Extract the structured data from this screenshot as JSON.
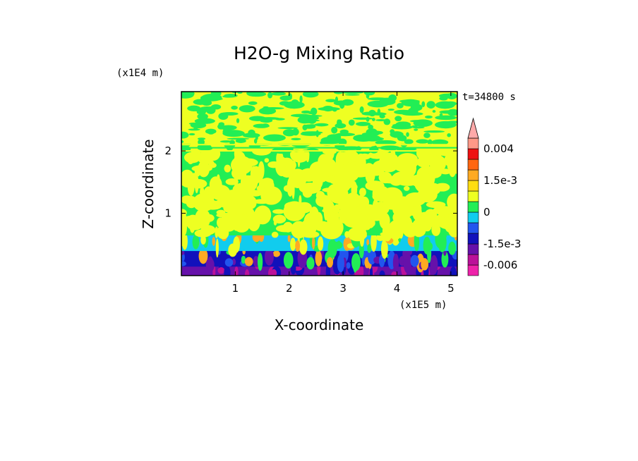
{
  "chart_data": {
    "type": "heatmap",
    "title": "H2O-g Mixing Ratio",
    "xlabel": "X-coordinate",
    "ylabel": "Z-coordinate",
    "x_scale_label": "(x1E5 m)",
    "y_scale_label": "(x1E4 m)",
    "time_label": "t=34800 s",
    "xlim": [
      0,
      5.12
    ],
    "ylim": [
      0,
      2.95
    ],
    "x_ticks": [
      {
        "value": 1,
        "label": "1"
      },
      {
        "value": 2,
        "label": "2"
      },
      {
        "value": 3,
        "label": "3"
      },
      {
        "value": 4,
        "label": "4"
      },
      {
        "value": 5,
        "label": "5"
      }
    ],
    "y_ticks": [
      {
        "value": 1,
        "label": "1"
      },
      {
        "value": 2,
        "label": "2"
      }
    ],
    "colorbar": {
      "levels": [
        -0.009,
        -0.006,
        -0.003,
        -0.0015,
        -0.001,
        -0.0005,
        0,
        0.0005,
        0.001,
        0.0015,
        0.002,
        0.003,
        0.004,
        0.005
      ],
      "colors": [
        "#ee22aa",
        "#bb1199",
        "#6611aa",
        "#1111bb",
        "#2255ee",
        "#11ccee",
        "#22ee55",
        "#eeff22",
        "#ffdd11",
        "#ffaa22",
        "#ff6611",
        "#ee1111",
        "#ff9988",
        "#ffaaaa"
      ],
      "tick_labels": [
        {
          "value": -0.006,
          "label": "-0.006"
        },
        {
          "value": -0.0015,
          "label": "-1.5e-3"
        },
        {
          "value": 0,
          "label": "0"
        },
        {
          "value": 0.0015,
          "label": "1.5e-3"
        },
        {
          "value": 0.004,
          "label": "0.004"
        }
      ],
      "extend": "max"
    },
    "field_bands": [
      {
        "z_min": 0.0,
        "z_max": 0.15,
        "dominant": "#6611aa",
        "mix": [
          "#1111bb",
          "#bb1199"
        ]
      },
      {
        "z_min": 0.15,
        "z_max": 0.4,
        "dominant": "#1111bb",
        "mix": [
          "#2255ee",
          "#ffaa22",
          "#22ee55",
          "#6611aa"
        ]
      },
      {
        "z_min": 0.4,
        "z_max": 0.65,
        "dominant": "#11ccee",
        "mix": [
          "#ffaa22",
          "#eeff22",
          "#22ee55"
        ]
      },
      {
        "z_min": 0.65,
        "z_max": 2.0,
        "dominant": "#22ee55",
        "mix": [
          "#eeff22"
        ]
      },
      {
        "z_min": 2.0,
        "z_max": 2.12,
        "dominant": "#eeff22",
        "mix": [
          "#22ee55"
        ]
      },
      {
        "z_min": 2.12,
        "z_max": 2.95,
        "dominant": "#eeff22",
        "mix": [
          "#22ee55"
        ]
      }
    ]
  }
}
